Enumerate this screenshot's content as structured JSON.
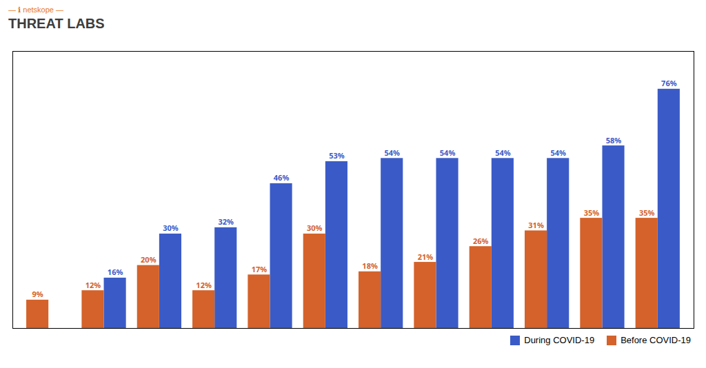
{
  "chart_data": {
    "type": "bar",
    "title": "THREAT LABS",
    "annotations": [
      "—  ℹ netskope  —"
    ],
    "categories": [
      null,
      null,
      null,
      null,
      null,
      null,
      null,
      null,
      null,
      null,
      null,
      null
    ],
    "series": [
      {
        "name": "During COVID-19",
        "color": "#3A5BC7",
        "values": [
          0,
          16,
          30,
          32,
          46,
          53,
          54,
          54,
          54,
          54,
          58,
          76
        ],
        "value_labels": [
          null,
          "16%",
          "30%",
          "32%",
          "46%",
          "53%",
          "54%",
          "54%",
          "54%",
          "54%",
          "58%",
          "76%"
        ]
      },
      {
        "name": "Before COVID-19",
        "color": "#D4622A",
        "values": [
          9,
          12,
          20,
          12,
          17,
          30,
          18,
          21,
          26,
          31,
          35,
          35
        ],
        "value_labels": [
          "9%",
          "12%",
          "20%",
          "12%",
          "17%",
          "30%",
          "18%",
          "21%",
          "26%",
          "31%",
          "35%",
          "35%"
        ]
      }
    ],
    "ylim": [
      0,
      88
    ],
    "yticks": [],
    "grid": false,
    "tick_labels": false,
    "data_labels": true,
    "legend": "lower right"
  }
}
